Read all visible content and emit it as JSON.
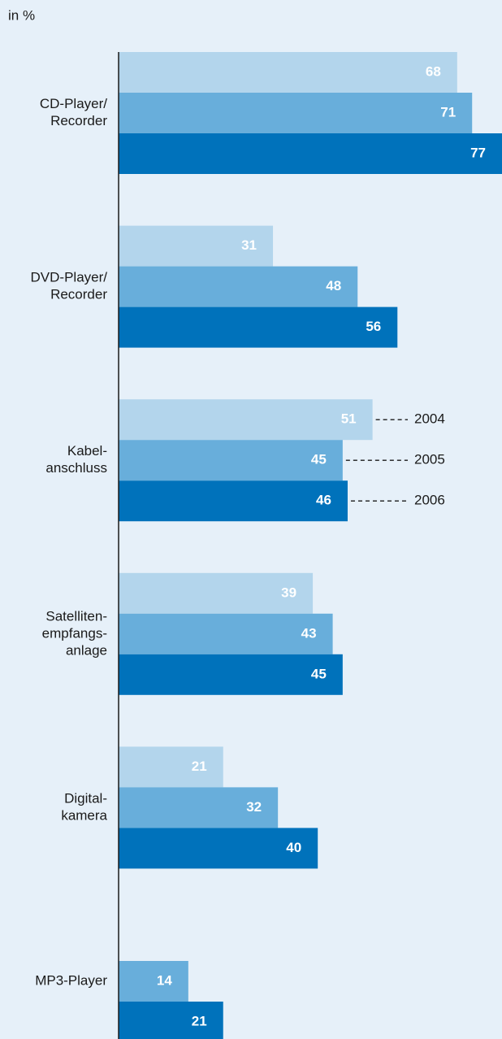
{
  "chart_data": {
    "type": "bar",
    "orientation": "horizontal",
    "subtitle": "in %",
    "categories": [
      [
        "CD-Player/",
        "Recorder"
      ],
      [
        "DVD-Player/",
        "Recorder"
      ],
      [
        "Kabel-",
        "anschluss"
      ],
      [
        "Satelliten-",
        "empfangs-",
        "anlage"
      ],
      [
        "Digital-",
        "kamera"
      ],
      [
        "MP3-Player"
      ]
    ],
    "series": [
      {
        "name": "2004",
        "color": "#b3d5ec",
        "values": [
          68,
          31,
          51,
          39,
          21,
          null
        ]
      },
      {
        "name": "2005",
        "color": "#68aedb",
        "values": [
          71,
          48,
          45,
          43,
          32,
          14
        ]
      },
      {
        "name": "2006",
        "color": "#0072bb",
        "values": [
          77,
          56,
          46,
          45,
          40,
          21
        ]
      }
    ],
    "xlim": [
      0,
      77
    ]
  }
}
